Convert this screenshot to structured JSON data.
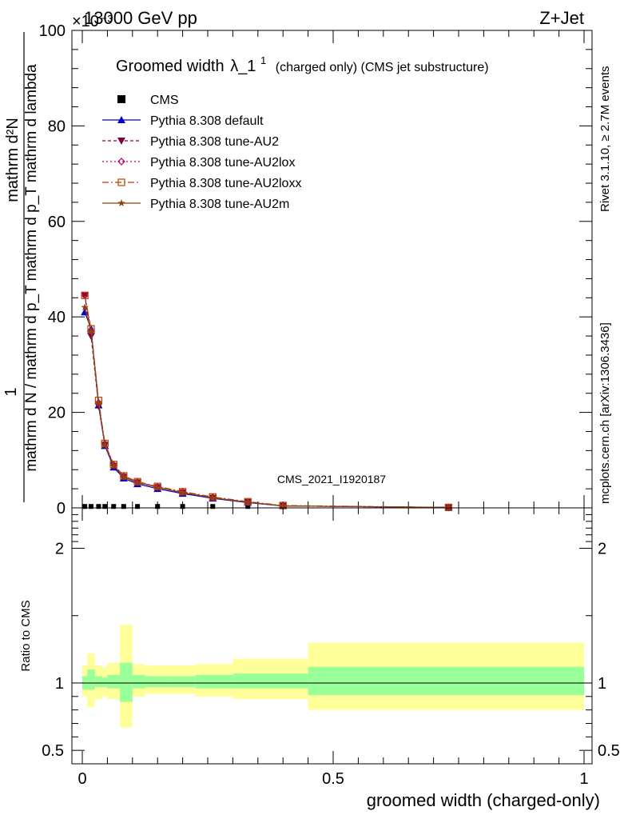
{
  "header": {
    "energy": "13000 GeV pp",
    "process": "Z+Jet",
    "exponent": "×10⁻³"
  },
  "side_labels": {
    "rivet": "Rivet 3.1.10, ≥ 2.7M events",
    "mcplots": "mcplots.cern.ch [arXiv:1306.3436]"
  },
  "watermark": "CMS_2021_I1920187",
  "colors": {
    "cms": "#000000",
    "default": "#0000cc",
    "au2": "#800040",
    "au2lox": "#b00060",
    "au2loxx": "#c04000",
    "au2m": "#8b4513",
    "band_inner": "#99ff99",
    "band_outer": "#ffff99"
  },
  "chart_data": [
    {
      "type": "line",
      "title": "Groomed width",
      "title_symbol": "λ_1",
      "title_sup": "1",
      "title_suffix": "(charged only) (CMS jet substructure)",
      "ylabel_numerator": "1",
      "ylabel_denominator": "mathrm d N / mathrm d p_T mathrm d p_T mathrm d lambda",
      "ylabel_top": "mathrm d²N",
      "ylim": [
        0,
        100
      ],
      "xlim": [
        0,
        1
      ],
      "yticks": [
        0,
        20,
        40,
        60,
        80,
        100
      ],
      "x": [
        0.005,
        0.0175,
        0.0325,
        0.045,
        0.0625,
        0.0825,
        0.11,
        0.15,
        0.2,
        0.26,
        0.33,
        0.4,
        0.73
      ],
      "series": [
        {
          "name": "CMS",
          "key": "cms",
          "marker": "square",
          "values": [
            0.3,
            0.3,
            0.3,
            0.3,
            0.3,
            0.3,
            0.3,
            0.3,
            0.3,
            0.3,
            0.3,
            0.3,
            0.3
          ]
        },
        {
          "name": "Pythia 8.308 default",
          "key": "default",
          "marker": "triangle-up",
          "dash": "",
          "values": [
            41.0,
            37.5,
            21.5,
            13.0,
            8.5,
            6.2,
            5.0,
            4.0,
            3.0,
            2.0,
            1.1,
            0.4,
            0.1
          ]
        },
        {
          "name": "Pythia 8.308 tune-AU2",
          "key": "au2",
          "marker": "triangle-down",
          "dash": "4,3",
          "values": [
            44.5,
            36.0,
            21.3,
            13.2,
            8.8,
            6.5,
            5.3,
            4.3,
            3.2,
            2.1,
            1.2,
            0.4,
            0.1
          ]
        },
        {
          "name": "Pythia 8.308 tune-AU2lox",
          "key": "au2lox",
          "marker": "diamond",
          "dash": "2,3",
          "values": [
            44.5,
            37.0,
            22.0,
            13.4,
            9.0,
            6.6,
            5.4,
            4.4,
            3.3,
            2.2,
            1.2,
            0.4,
            0.1
          ]
        },
        {
          "name": "Pythia 8.308 tune-AU2loxx",
          "key": "au2loxx",
          "marker": "square-open",
          "dash": "8,3,2,3",
          "values": [
            44.5,
            37.5,
            22.5,
            13.5,
            9.1,
            6.7,
            5.5,
            4.5,
            3.4,
            2.3,
            1.3,
            0.5,
            0.1
          ]
        },
        {
          "name": "Pythia 8.308 tune-AU2m",
          "key": "au2m",
          "marker": "star",
          "dash": "",
          "values": [
            42.0,
            37.0,
            22.0,
            13.2,
            8.9,
            6.5,
            5.3,
            4.3,
            3.2,
            2.1,
            1.2,
            0.4,
            0.1
          ]
        }
      ]
    },
    {
      "type": "area",
      "ylabel": "Ratio to CMS",
      "xlabel": "groomed width (charged-only)",
      "xlim": [
        0,
        1
      ],
      "ylim": [
        0.4,
        2.3
      ],
      "yticks": [
        0.5,
        1,
        2
      ],
      "xticks": [
        0,
        0.5,
        1
      ],
      "bins": [
        0,
        0.01,
        0.025,
        0.04,
        0.05,
        0.075,
        0.1,
        0.125,
        0.175,
        0.225,
        0.3,
        0.45,
        1.0
      ],
      "inner_low": [
        0.95,
        0.95,
        0.97,
        0.97,
        0.96,
        0.86,
        0.96,
        0.97,
        0.97,
        0.96,
        0.96,
        0.91
      ],
      "inner_high": [
        1.05,
        1.1,
        1.05,
        1.04,
        1.06,
        1.15,
        1.06,
        1.05,
        1.05,
        1.06,
        1.07,
        1.12
      ],
      "outer_low": [
        0.9,
        0.82,
        0.88,
        0.9,
        0.88,
        0.67,
        0.9,
        0.92,
        0.92,
        0.9,
        0.88,
        0.8
      ],
      "outer_high": [
        1.13,
        1.22,
        1.13,
        1.12,
        1.15,
        1.43,
        1.14,
        1.13,
        1.13,
        1.14,
        1.18,
        1.3
      ],
      "reference": 1
    }
  ]
}
